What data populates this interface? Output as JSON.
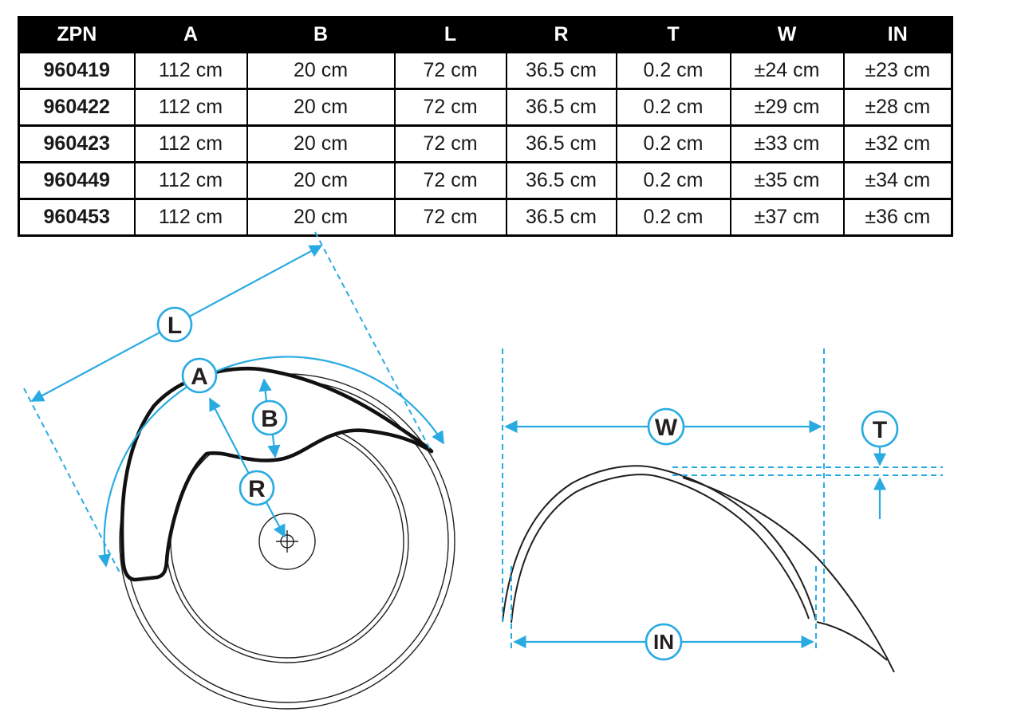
{
  "table": {
    "columns": [
      "ZPN",
      "A",
      "B",
      "L",
      "R",
      "T",
      "W",
      "IN"
    ],
    "rows": [
      [
        "960419",
        "112 cm",
        "20 cm",
        "72 cm",
        "36.5 cm",
        "0.2 cm",
        "±24 cm",
        "±23 cm"
      ],
      [
        "960422",
        "112 cm",
        "20 cm",
        "72 cm",
        "36.5 cm",
        "0.2 cm",
        "±29 cm",
        "±28 cm"
      ],
      [
        "960423",
        "112 cm",
        "20 cm",
        "72 cm",
        "36.5 cm",
        "0.2 cm",
        "±33 cm",
        "±32 cm"
      ],
      [
        "960449",
        "112 cm",
        "20 cm",
        "72 cm",
        "36.5 cm",
        "0.2 cm",
        "±35 cm",
        "±34 cm"
      ],
      [
        "960453",
        "112 cm",
        "20 cm",
        "72 cm",
        "36.5 cm",
        "0.2 cm",
        "±37 cm",
        "±36 cm"
      ]
    ]
  },
  "diagrams": {
    "side_view": {
      "description": "fender side view over wheel",
      "labels": {
        "L": "L",
        "A": "A",
        "B": "B",
        "R": "R"
      }
    },
    "front_view": {
      "description": "fender front view arch",
      "labels": {
        "W": "W",
        "T": "T",
        "IN": "IN"
      }
    }
  },
  "colors": {
    "accent": "#29abe2",
    "line": "#231f20",
    "table_header_bg": "#000000",
    "table_header_text": "#ffffff"
  }
}
